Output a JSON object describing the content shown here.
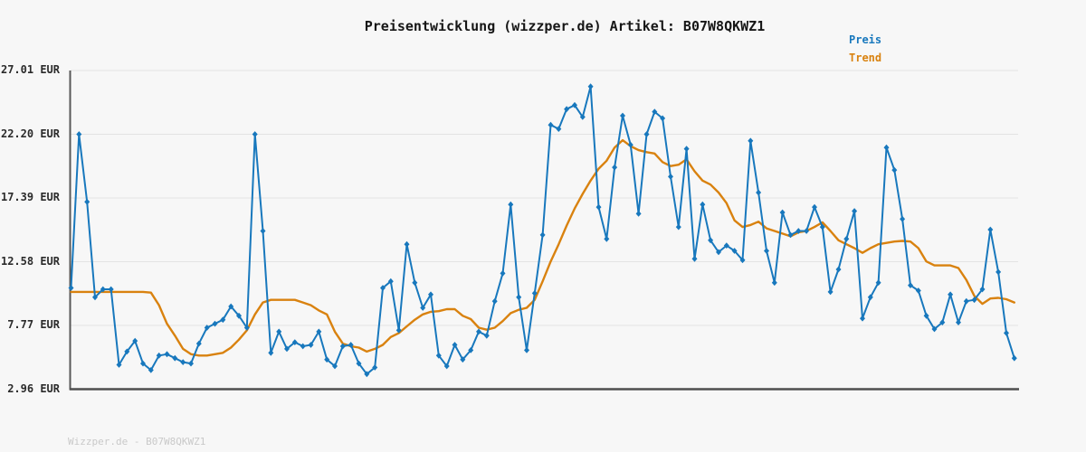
{
  "page": {
    "title": "Preisentwicklung (wizzper.de) Artikel: B07W8QKWZ1",
    "footer": "Wizzper.de - B07W8QKWZ1",
    "background_color": "#f7f7f7"
  },
  "legend": {
    "items": [
      {
        "label": "Preis",
        "color": "#1878bd"
      },
      {
        "label": "Trend",
        "color": "#d9820f"
      }
    ]
  },
  "axes": {
    "y_tick_labels": [
      "27.01 EUR",
      "22.20 EUR",
      "17.39 EUR",
      "12.58 EUR",
      "7.77 EUR",
      "2.96 EUR"
    ],
    "y_tick_values": [
      27.01,
      22.2,
      17.39,
      12.58,
      7.77,
      2.96
    ],
    "x_tick_labels": [],
    "axis_color": "#585858",
    "grid_color": "#e3e3e3"
  },
  "chart_data": {
    "type": "line",
    "title": "Preisentwicklung (wizzper.de) Artikel: B07W8QKWZ1",
    "xlabel": "",
    "ylabel": "EUR",
    "ylim": [
      2.96,
      27.01
    ],
    "grid": "horizontal-only",
    "legend_position": "top-right",
    "series": [
      {
        "name": "Preis",
        "color": "#1878bd",
        "marker": "diamond",
        "line_width": 2,
        "values": [
          10.6,
          22.2,
          17.1,
          9.9,
          10.5,
          10.5,
          4.8,
          5.8,
          6.6,
          4.9,
          4.4,
          5.5,
          5.6,
          5.3,
          5.0,
          4.9,
          6.4,
          7.6,
          7.9,
          8.2,
          9.2,
          8.5,
          7.6,
          22.2,
          14.9,
          5.7,
          7.3,
          6.0,
          6.5,
          6.2,
          6.3,
          7.3,
          5.2,
          4.7,
          6.2,
          6.3,
          4.9,
          4.1,
          4.6,
          10.6,
          11.1,
          7.4,
          13.9,
          11.0,
          9.1,
          10.1,
          5.5,
          4.7,
          6.3,
          5.2,
          5.9,
          7.3,
          7.0,
          9.6,
          11.7,
          16.9,
          9.9,
          5.9,
          10.2,
          14.6,
          22.9,
          22.6,
          24.1,
          24.4,
          23.5,
          25.8,
          16.7,
          14.3,
          19.7,
          23.6,
          21.4,
          16.2,
          22.2,
          23.9,
          23.4,
          19.0,
          15.2,
          21.1,
          12.8,
          16.9,
          14.2,
          13.3,
          13.8,
          13.4,
          12.7,
          21.7,
          17.8,
          13.4,
          11.0,
          16.3,
          14.6,
          14.9,
          14.9,
          16.7,
          15.2,
          10.3,
          12.0,
          14.3,
          16.4,
          8.3,
          9.9,
          11.0,
          21.2,
          19.5,
          15.8,
          10.8,
          10.4,
          8.5,
          7.5,
          8.0,
          10.1,
          8.0,
          9.6,
          9.7,
          10.5,
          15.0,
          11.8,
          7.2,
          5.3
        ]
      },
      {
        "name": "Trend",
        "color": "#d9820f",
        "marker": "none",
        "line_width": 2.4,
        "values": [
          10.3,
          10.3,
          10.3,
          10.3,
          10.3,
          10.3,
          10.3,
          10.3,
          10.3,
          10.3,
          10.25,
          9.3,
          7.9,
          7.0,
          6.0,
          5.6,
          5.5,
          5.5,
          5.6,
          5.7,
          6.1,
          6.7,
          7.4,
          8.6,
          9.5,
          9.7,
          9.7,
          9.7,
          9.7,
          9.5,
          9.3,
          8.9,
          8.6,
          7.3,
          6.4,
          6.2,
          6.1,
          5.8,
          6.0,
          6.3,
          6.9,
          7.2,
          7.7,
          8.2,
          8.6,
          8.8,
          8.85,
          9.0,
          9.0,
          8.5,
          8.25,
          7.6,
          7.45,
          7.6,
          8.1,
          8.7,
          8.95,
          9.1,
          9.7,
          11.1,
          12.6,
          13.9,
          15.3,
          16.6,
          17.7,
          18.7,
          19.6,
          20.2,
          21.2,
          21.75,
          21.3,
          21.0,
          20.85,
          20.75,
          20.1,
          19.8,
          19.9,
          20.3,
          19.4,
          18.7,
          18.4,
          17.8,
          17.0,
          15.7,
          15.2,
          15.35,
          15.6,
          15.1,
          14.9,
          14.7,
          14.5,
          14.8,
          14.9,
          15.2,
          15.55,
          14.9,
          14.2,
          13.9,
          13.6,
          13.25,
          13.6,
          13.9,
          14.0,
          14.1,
          14.15,
          14.1,
          13.6,
          12.6,
          12.3,
          12.3,
          12.3,
          12.1,
          11.2,
          10.0,
          9.4,
          9.8,
          9.85,
          9.75,
          9.5
        ]
      }
    ]
  }
}
